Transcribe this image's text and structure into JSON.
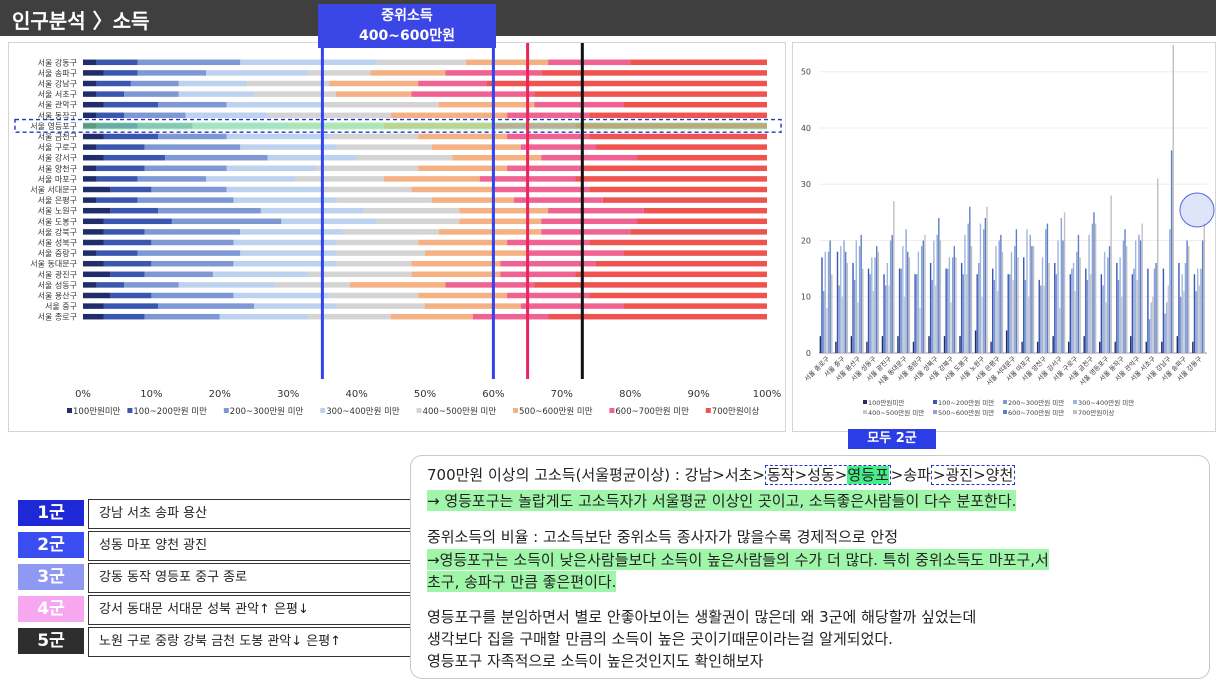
{
  "header": {
    "title": "인구분석 〉소득",
    "mid_label_line1": "중위소득",
    "mid_label_line2": "400~600만원"
  },
  "colors": {
    "c1": "#1f2d6b",
    "c2": "#3a57b0",
    "c3": "#7e98d3",
    "c4": "#bcd2ee",
    "c5": "#d4d4d4",
    "c6": "#f4b183",
    "c7": "#f06292",
    "c8": "#ef5350",
    "blue_line": "#3344ee",
    "red_line": "#e8265b",
    "black_line": "#111111"
  },
  "chart_data": [
    {
      "type": "bar",
      "orientation": "horizontal-stacked-100",
      "categories": [
        "서울 강동구",
        "서울 송파구",
        "서울 강남구",
        "서울 서초구",
        "서울 관악구",
        "서울 동작구",
        "서울 영등포구",
        "서울 금천구",
        "서울 구로구",
        "서울 강서구",
        "서울 양천구",
        "서울 마포구",
        "서울 서대문구",
        "서울 은평구",
        "서울 노원구",
        "서울 도봉구",
        "서울 강북구",
        "서울 성북구",
        "서울 중랑구",
        "서울 동대문구",
        "서울 광진구",
        "서울 성동구",
        "서울 용산구",
        "서울 중구",
        "서울 종로구"
      ],
      "series": [
        {
          "name": "100만원미만",
          "values": [
            2,
            3,
            2,
            2,
            3,
            2,
            2,
            3,
            2,
            3,
            2,
            2,
            4,
            2,
            4,
            3,
            3,
            3,
            2,
            3,
            4,
            2,
            4,
            3,
            3
          ]
        },
        {
          "name": "100~200만원 미만",
          "values": [
            6,
            5,
            5,
            4,
            8,
            4,
            6,
            8,
            7,
            9,
            7,
            6,
            6,
            6,
            7,
            10,
            6,
            7,
            6,
            7,
            5,
            4,
            6,
            8,
            6
          ]
        },
        {
          "name": "200~300만원 미만",
          "values": [
            15,
            10,
            7,
            8,
            10,
            9,
            8,
            10,
            14,
            15,
            12,
            10,
            11,
            14,
            15,
            16,
            14,
            12,
            15,
            12,
            10,
            8,
            12,
            14,
            11
          ]
        },
        {
          "name": "300~400만원 미만",
          "values": [
            20,
            15,
            10,
            11,
            14,
            12,
            14,
            15,
            14,
            13,
            13,
            13,
            14,
            15,
            15,
            14,
            15,
            15,
            14,
            15,
            14,
            14,
            14,
            12,
            13
          ]
        },
        {
          "name": "400~500만원 미만",
          "values": [
            13,
            9,
            12,
            12,
            17,
            18,
            14,
            13,
            14,
            14,
            15,
            13,
            13,
            14,
            14,
            12,
            14,
            12,
            13,
            11,
            15,
            11,
            13,
            13,
            12
          ]
        },
        {
          "name": "500~600만원 미만",
          "values": [
            12,
            11,
            13,
            11,
            14,
            17,
            16,
            13,
            13,
            13,
            13,
            14,
            12,
            12,
            13,
            12,
            15,
            13,
            15,
            13,
            13,
            14,
            13,
            14,
            12
          ]
        },
        {
          "name": "600~700만원 미만",
          "values": [
            12,
            14,
            10,
            18,
            13,
            12,
            12,
            12,
            11,
            14,
            11,
            14,
            14,
            13,
            14,
            14,
            13,
            12,
            14,
            14,
            11,
            13,
            12,
            15,
            11
          ]
        },
        {
          "name": "700만원이상",
          "values": [
            20,
            33,
            41,
            34,
            21,
            26,
            28,
            26,
            25,
            19,
            27,
            28,
            26,
            24,
            18,
            19,
            20,
            26,
            21,
            25,
            28,
            34,
            26,
            21,
            32
          ]
        }
      ],
      "xticks": [
        "0%",
        "10%",
        "20%",
        "30%",
        "40%",
        "50%",
        "60%",
        "70%",
        "80%",
        "90%",
        "100%"
      ],
      "legend": [
        "100만원미만",
        "100~200만원 미만",
        "200~300만원 미만",
        "300~400만원 미만",
        "400~500만원 미만",
        "500~600만원 미만",
        "600~700만원 미만",
        "700만원이상"
      ],
      "reference_lines_percent": {
        "blue": [
          35,
          60
        ],
        "red": [
          65
        ],
        "black": [
          73
        ]
      },
      "highlighted_row": "서울 영등포구"
    },
    {
      "type": "bar",
      "orientation": "vertical-grouped",
      "categories": [
        "서울 종로구",
        "서울 중구",
        "서울 용산구",
        "서울 성동구",
        "서울 광진구",
        "서울 동대문구",
        "서울 중랑구",
        "서울 성북구",
        "서울 강북구",
        "서울 도봉구",
        "서울 노원구",
        "서울 은평구",
        "서울 서대문구",
        "서울 마포구",
        "서울 양천구",
        "서울 강서구",
        "서울 구로구",
        "서울 금천구",
        "서울 영등포구",
        "서울 동작구",
        "서울 관악구",
        "서울 서초구",
        "서울 강남구",
        "서울 송파구",
        "서울 강동구"
      ],
      "yticks": [
        "0",
        "10",
        "20",
        "30",
        "40",
        "50"
      ],
      "ylim": [
        0,
        55
      ],
      "legend": [
        "100만원미만",
        "100~200만원 미만",
        "200~300만원 미만",
        "300~400만원 미만",
        "400~500만원 미만",
        "500~600만원 미만",
        "600~700만원 미만",
        "700만원이상"
      ],
      "series": [
        {
          "name": "100만원미만",
          "values": [
            3,
            2,
            3,
            2,
            3,
            3,
            2,
            3,
            3,
            3,
            4,
            2,
            4,
            2,
            2,
            3,
            2,
            3,
            2,
            2,
            3,
            2,
            2,
            3,
            2
          ]
        },
        {
          "name": "100~200만원 미만",
          "values": [
            17,
            18,
            16,
            15,
            14,
            15,
            14,
            16,
            15,
            16,
            14,
            15,
            14,
            17,
            13,
            16,
            14,
            15,
            14,
            16,
            14,
            15,
            15,
            16,
            14
          ]
        },
        {
          "name": "200~300만원 미만",
          "values": [
            11,
            12,
            13,
            14,
            12,
            15,
            14,
            13,
            15,
            14,
            16,
            13,
            14,
            13,
            12,
            14,
            15,
            13,
            12,
            13,
            15,
            6,
            7,
            10,
            11
          ]
        },
        {
          "name": "300~400만원 미만",
          "values": [
            18,
            19,
            20,
            17,
            16,
            19,
            18,
            20,
            17,
            21,
            23,
            19,
            18,
            22,
            17,
            20,
            16,
            21,
            18,
            17,
            20,
            9,
            9,
            14,
            15
          ]
        },
        {
          "name": "400~500만원 미만",
          "values": [
            8,
            10,
            9,
            11,
            12,
            10,
            8,
            12,
            9,
            14,
            10,
            11,
            13,
            10,
            12,
            8,
            11,
            14,
            9,
            10,
            13,
            10,
            12,
            11,
            12
          ]
        },
        {
          "name": "500~600만원 미만",
          "values": [
            18,
            20,
            19,
            17,
            20,
            22,
            19,
            21,
            17,
            23,
            22,
            20,
            19,
            21,
            22,
            24,
            18,
            23,
            17,
            20,
            21,
            15,
            22,
            16,
            15
          ]
        },
        {
          "name": "600~700만원 미만",
          "values": [
            20,
            18,
            21,
            19,
            21,
            18,
            20,
            24,
            19,
            26,
            24,
            21,
            22,
            19,
            23,
            20,
            21,
            25,
            19,
            22,
            20,
            16,
            36,
            20,
            20
          ]
        },
        {
          "name": "700만원이상",
          "values": [
            14,
            16,
            15,
            18,
            27,
            17,
            21,
            20,
            17,
            19,
            26,
            18,
            17,
            19,
            16,
            25,
            17,
            23,
            28,
            19,
            23,
            31,
            55,
            19,
            23
          ]
        }
      ]
    }
  ],
  "all2_label": "모두 2군",
  "groups": [
    {
      "badge": "1군",
      "text": "강남 서초 송파 용산",
      "color": "#1f28d6"
    },
    {
      "badge": "2군",
      "text": "성동 마포 양천 광진",
      "color": "#3a4df0"
    },
    {
      "badge": "3군",
      "text": "강동 동작 영등포 중구 종로",
      "color": "#8f98f2"
    },
    {
      "badge": "4군",
      "text": "강서 동대문 서대문 성북 관악↑ 은평↓",
      "color": "#f7a6f0"
    },
    {
      "badge": "5군",
      "text": "노원 구로 중랑 강북 금천 도봉 관악↓ 은평↑",
      "color": "#2e2e2e"
    }
  ],
  "notes": {
    "l1_a": "700만원 이상의 고소득(서울평균이상) : 강남>서초>",
    "l1_b": "동작>성동>",
    "l1_c": "영등포",
    "l1_d": ">송파",
    "l1_e": ">광진>양천",
    "l2": "→ 영등포구는 놀랍게도 고소득자가 서울평균 이상인 곳이고, 소득좋은사람들이 다수 분포한다.",
    "l3": "중위소득의 비율 : 고소득보단 중위소득 종사자가 많을수록 경제적으로 안정",
    "l4": "→영등포구는 소득이 낮은사람들보다 소득이 높은사람들의 수가 더 많다. 특히 중위소득도 마포구,서",
    "l5": "초구, 송파구 만큼 좋은편이다.",
    "l6": "영등포구를 분임하면서 별로 안좋아보이는 생활권이 많은데 왜 3군에 해당할까 싶었는데",
    "l7": "생각보다 집을 구매할 만큼의 소득이 높은 곳이기때문이라는걸 알게되었다.",
    "l8": "영등포구 자족적으로 소득이 높은것인지도 확인해보자"
  }
}
